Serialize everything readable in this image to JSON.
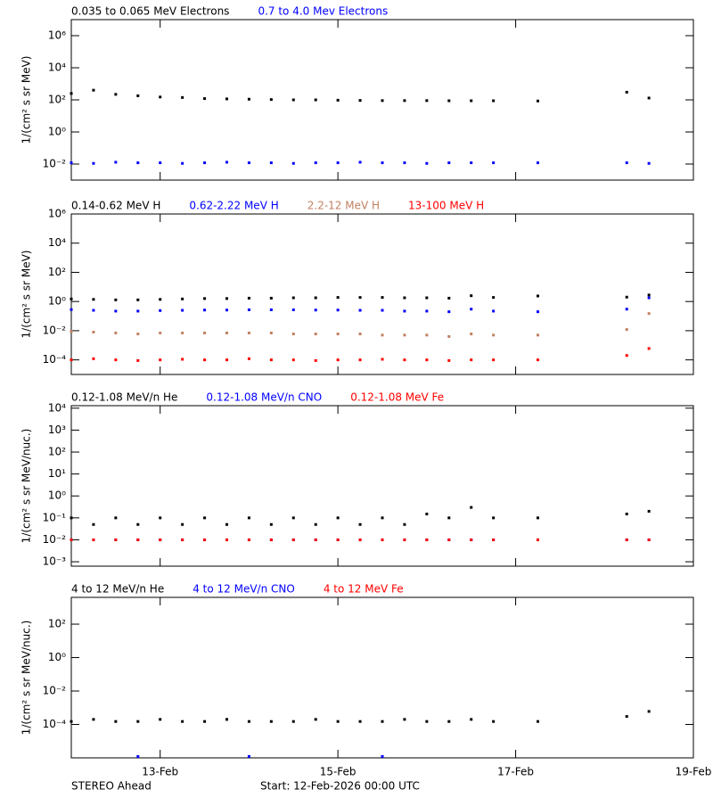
{
  "footer": {
    "left": "STEREO Ahead",
    "center": "Start: 12-Feb-2026 00:00 UTC"
  },
  "chart_data": [
    {
      "type": "scatter",
      "ylabel": "1/(cm² s sr MeV)",
      "log_y": true,
      "x": [
        "2026-02-12T00:00",
        "2026-02-12T06:00",
        "2026-02-12T12:00",
        "2026-02-12T18:00",
        "2026-02-13T00:00",
        "2026-02-13T06:00",
        "2026-02-13T12:00",
        "2026-02-13T18:00",
        "2026-02-14T00:00",
        "2026-02-14T06:00",
        "2026-02-14T12:00",
        "2026-02-14T18:00",
        "2026-02-15T00:00",
        "2026-02-15T06:00",
        "2026-02-15T12:00",
        "2026-02-15T18:00",
        "2026-02-16T00:00",
        "2026-02-16T06:00",
        "2026-02-16T12:00",
        "2026-02-16T18:00",
        "2026-02-17T00:00",
        "2026-02-17T06:00",
        "2026-02-17T12:00",
        "2026-02-17T18:00",
        "2026-02-18T00:00",
        "2026-02-18T06:00",
        "2026-02-18T12:00"
      ],
      "xlim": [
        "2026-02-12T00:00",
        "2026-02-19T00:00"
      ],
      "ylim": [
        0.001,
        10000000
      ],
      "yticks": [
        {
          "value": 0.01,
          "label": "10⁻²"
        },
        {
          "value": 1,
          "label": "10⁰"
        },
        {
          "value": 100,
          "label": "10²"
        },
        {
          "value": 10000,
          "label": "10⁴"
        },
        {
          "value": 1000000,
          "label": "10⁶"
        }
      ],
      "series": [
        {
          "name": "0.035 to 0.065 MeV Electrons",
          "color": "#000000",
          "values": [
            250,
            400,
            220,
            180,
            150,
            140,
            120,
            115,
            110,
            105,
            100,
            100,
            95,
            92,
            90,
            90,
            90,
            88,
            88,
            88,
            null,
            85,
            null,
            null,
            null,
            300,
            130
          ]
        },
        {
          "name": "0.7 to 4.0 Mev Electrons",
          "color": "#0000ff",
          "values": [
            0.012,
            0.011,
            0.013,
            0.012,
            0.012,
            0.011,
            0.012,
            0.013,
            0.012,
            0.012,
            0.011,
            0.012,
            0.012,
            0.013,
            0.012,
            0.012,
            0.011,
            0.012,
            0.012,
            0.012,
            null,
            0.012,
            null,
            null,
            null,
            0.012,
            0.011
          ]
        }
      ]
    },
    {
      "type": "scatter",
      "ylabel": "1/(cm² s sr MeV)",
      "log_y": true,
      "x": [
        "2026-02-12T00:00",
        "2026-02-12T06:00",
        "2026-02-12T12:00",
        "2026-02-12T18:00",
        "2026-02-13T00:00",
        "2026-02-13T06:00",
        "2026-02-13T12:00",
        "2026-02-13T18:00",
        "2026-02-14T00:00",
        "2026-02-14T06:00",
        "2026-02-14T12:00",
        "2026-02-14T18:00",
        "2026-02-15T00:00",
        "2026-02-15T06:00",
        "2026-02-15T12:00",
        "2026-02-15T18:00",
        "2026-02-16T00:00",
        "2026-02-16T06:00",
        "2026-02-16T12:00",
        "2026-02-16T18:00",
        "2026-02-17T00:00",
        "2026-02-17T06:00",
        "2026-02-17T12:00",
        "2026-02-17T18:00",
        "2026-02-18T00:00",
        "2026-02-18T06:00",
        "2026-02-18T12:00"
      ],
      "xlim": [
        "2026-02-12T00:00",
        "2026-02-19T00:00"
      ],
      "ylim": [
        1e-05,
        1000000
      ],
      "yticks": [
        {
          "value": 0.0001,
          "label": "10⁻⁴"
        },
        {
          "value": 0.01,
          "label": "10⁻²"
        },
        {
          "value": 1,
          "label": "10⁰"
        },
        {
          "value": 100,
          "label": "10²"
        },
        {
          "value": 10000,
          "label": "10⁴"
        },
        {
          "value": 1000000,
          "label": "10⁶"
        }
      ],
      "series": [
        {
          "name": "0.14-0.62 MeV H",
          "color": "#000000",
          "values": [
            1.5,
            1.4,
            1.3,
            1.3,
            1.4,
            1.5,
            1.6,
            1.6,
            1.7,
            1.7,
            1.8,
            1.8,
            1.9,
            1.9,
            1.9,
            1.8,
            1.8,
            1.7,
            2.5,
            1.9,
            null,
            2.4,
            null,
            null,
            null,
            2.0,
            2.8
          ]
        },
        {
          "name": "0.62-2.22 MeV H",
          "color": "#0000ff",
          "values": [
            0.28,
            0.25,
            0.22,
            0.22,
            0.24,
            0.25,
            0.26,
            0.26,
            0.27,
            0.27,
            0.27,
            0.26,
            0.26,
            0.25,
            0.25,
            0.22,
            0.22,
            0.2,
            0.3,
            0.22,
            null,
            0.2,
            null,
            null,
            null,
            0.3,
            1.8
          ]
        },
        {
          "name": "2.2-12 MeV H",
          "color": "#c08060",
          "values": [
            0.009,
            0.008,
            0.007,
            0.006,
            0.007,
            0.007,
            0.007,
            0.007,
            0.007,
            0.007,
            0.006,
            0.006,
            0.006,
            0.006,
            0.005,
            0.005,
            0.005,
            0.004,
            0.006,
            0.005,
            null,
            0.005,
            null,
            null,
            null,
            0.012,
            0.15
          ]
        },
        {
          "name": "13-100 MeV H",
          "color": "#ff0000",
          "values": [
            0.0001,
            0.00012,
            0.0001,
            9e-05,
            0.0001,
            0.00011,
            0.0001,
            0.0001,
            0.00012,
            0.0001,
            0.0001,
            9e-05,
            0.0001,
            0.0001,
            0.00011,
            0.0001,
            0.0001,
            9e-05,
            0.0001,
            0.0001,
            null,
            0.0001,
            null,
            null,
            null,
            0.0002,
            0.0006
          ]
        }
      ]
    },
    {
      "type": "scatter",
      "ylabel": "1/(cm² s sr MeV/nuc.)",
      "log_y": true,
      "x": [
        "2026-02-12T00:00",
        "2026-02-12T06:00",
        "2026-02-12T12:00",
        "2026-02-12T18:00",
        "2026-02-13T00:00",
        "2026-02-13T06:00",
        "2026-02-13T12:00",
        "2026-02-13T18:00",
        "2026-02-14T00:00",
        "2026-02-14T06:00",
        "2026-02-14T12:00",
        "2026-02-14T18:00",
        "2026-02-15T00:00",
        "2026-02-15T06:00",
        "2026-02-15T12:00",
        "2026-02-15T18:00",
        "2026-02-16T00:00",
        "2026-02-16T06:00",
        "2026-02-16T12:00",
        "2026-02-16T18:00",
        "2026-02-17T00:00",
        "2026-02-17T06:00",
        "2026-02-17T12:00",
        "2026-02-17T18:00",
        "2026-02-18T00:00",
        "2026-02-18T06:00",
        "2026-02-18T12:00"
      ],
      "xlim": [
        "2026-02-12T00:00",
        "2026-02-19T00:00"
      ],
      "ylim": [
        0.00063,
        13000
      ],
      "yticks": [
        {
          "value": 0.001,
          "label": "10⁻³"
        },
        {
          "value": 0.01,
          "label": "10⁻²"
        },
        {
          "value": 0.1,
          "label": "10⁻¹"
        },
        {
          "value": 1,
          "label": "10⁰"
        },
        {
          "value": 10,
          "label": "10¹"
        },
        {
          "value": 100,
          "label": "10²"
        },
        {
          "value": 1000,
          "label": "10³"
        },
        {
          "value": 10000,
          "label": "10⁴"
        }
      ],
      "series": [
        {
          "name": "0.12-1.08 MeV/n He",
          "color": "#000000",
          "values": [
            0.1,
            0.05,
            0.1,
            0.05,
            0.1,
            0.05,
            0.1,
            0.05,
            0.1,
            0.05,
            0.1,
            0.05,
            0.1,
            0.05,
            0.1,
            0.05,
            0.15,
            0.1,
            0.3,
            0.1,
            null,
            0.1,
            null,
            null,
            null,
            0.15,
            0.2
          ]
        },
        {
          "name": "0.12-1.08 MeV/n CNO",
          "color": "#0000ff",
          "values": [
            0.01,
            0.01,
            0.01,
            0.01,
            0.01,
            0.01,
            0.01,
            0.01,
            0.01,
            0.01,
            0.01,
            0.01,
            0.01,
            0.01,
            0.01,
            0.01,
            0.01,
            0.01,
            0.01,
            0.01,
            null,
            0.01,
            null,
            null,
            null,
            0.01,
            0.01
          ]
        },
        {
          "name": "0.12-1.08 MeV Fe",
          "color": "#ff0000",
          "values": [
            0.01,
            0.01,
            0.01,
            0.01,
            0.01,
            0.01,
            0.01,
            0.01,
            0.01,
            0.01,
            0.01,
            0.01,
            0.01,
            0.01,
            0.01,
            0.01,
            0.01,
            0.01,
            0.01,
            0.01,
            null,
            0.01,
            null,
            null,
            null,
            0.01,
            0.01
          ]
        }
      ]
    },
    {
      "type": "scatter",
      "ylabel": "1/(cm² s sr MeV/nuc.)",
      "log_y": true,
      "x": [
        "2026-02-12T00:00",
        "2026-02-12T06:00",
        "2026-02-12T12:00",
        "2026-02-12T18:00",
        "2026-02-13T00:00",
        "2026-02-13T06:00",
        "2026-02-13T12:00",
        "2026-02-13T18:00",
        "2026-02-14T00:00",
        "2026-02-14T06:00",
        "2026-02-14T12:00",
        "2026-02-14T18:00",
        "2026-02-15T00:00",
        "2026-02-15T06:00",
        "2026-02-15T12:00",
        "2026-02-15T18:00",
        "2026-02-16T00:00",
        "2026-02-16T06:00",
        "2026-02-16T12:00",
        "2026-02-16T18:00",
        "2026-02-17T00:00",
        "2026-02-17T06:00",
        "2026-02-17T12:00",
        "2026-02-17T18:00",
        "2026-02-18T00:00",
        "2026-02-18T06:00",
        "2026-02-18T12:00"
      ],
      "xlim": [
        "2026-02-12T00:00",
        "2026-02-19T00:00"
      ],
      "ylim": [
        1e-06,
        4000
      ],
      "xticks": [
        {
          "value": "2026-02-13T00:00",
          "label": "13-Feb"
        },
        {
          "value": "2026-02-15T00:00",
          "label": "15-Feb"
        },
        {
          "value": "2026-02-17T00:00",
          "label": "17-Feb"
        },
        {
          "value": "2026-02-19T00:00",
          "label": "19-Feb"
        }
      ],
      "yticks": [
        {
          "value": 0.0001,
          "label": "10⁻⁴"
        },
        {
          "value": 0.01,
          "label": "10⁻²"
        },
        {
          "value": 1,
          "label": "10⁰"
        },
        {
          "value": 100,
          "label": "10²"
        }
      ],
      "series": [
        {
          "name": "4 to 12 MeV/n He",
          "color": "#000000",
          "values": [
            0.00015,
            0.0002,
            0.00015,
            0.00015,
            0.0002,
            0.00015,
            0.00015,
            0.0002,
            0.00015,
            0.00015,
            0.00015,
            0.0002,
            0.00015,
            0.00015,
            0.00015,
            0.0002,
            0.00015,
            0.00015,
            0.0002,
            0.00015,
            null,
            0.00015,
            null,
            null,
            null,
            0.0003,
            0.0006
          ]
        },
        {
          "name": "4 to 12 MeV/n CNO",
          "color": "#0000ff",
          "values": [
            null,
            null,
            null,
            1.2e-06,
            null,
            null,
            null,
            null,
            1.2e-06,
            null,
            null,
            null,
            null,
            null,
            1.2e-06,
            null,
            null,
            null,
            null,
            null,
            null,
            null,
            null,
            null,
            null,
            null,
            null
          ]
        },
        {
          "name": "4 to 12 MeV Fe",
          "color": "#ff0000",
          "values": [
            null,
            null,
            null,
            null,
            null,
            null,
            null,
            null,
            null,
            null,
            null,
            null,
            null,
            null,
            null,
            null,
            null,
            null,
            null,
            null,
            null,
            null,
            null,
            null,
            null,
            null,
            null
          ]
        }
      ]
    }
  ]
}
